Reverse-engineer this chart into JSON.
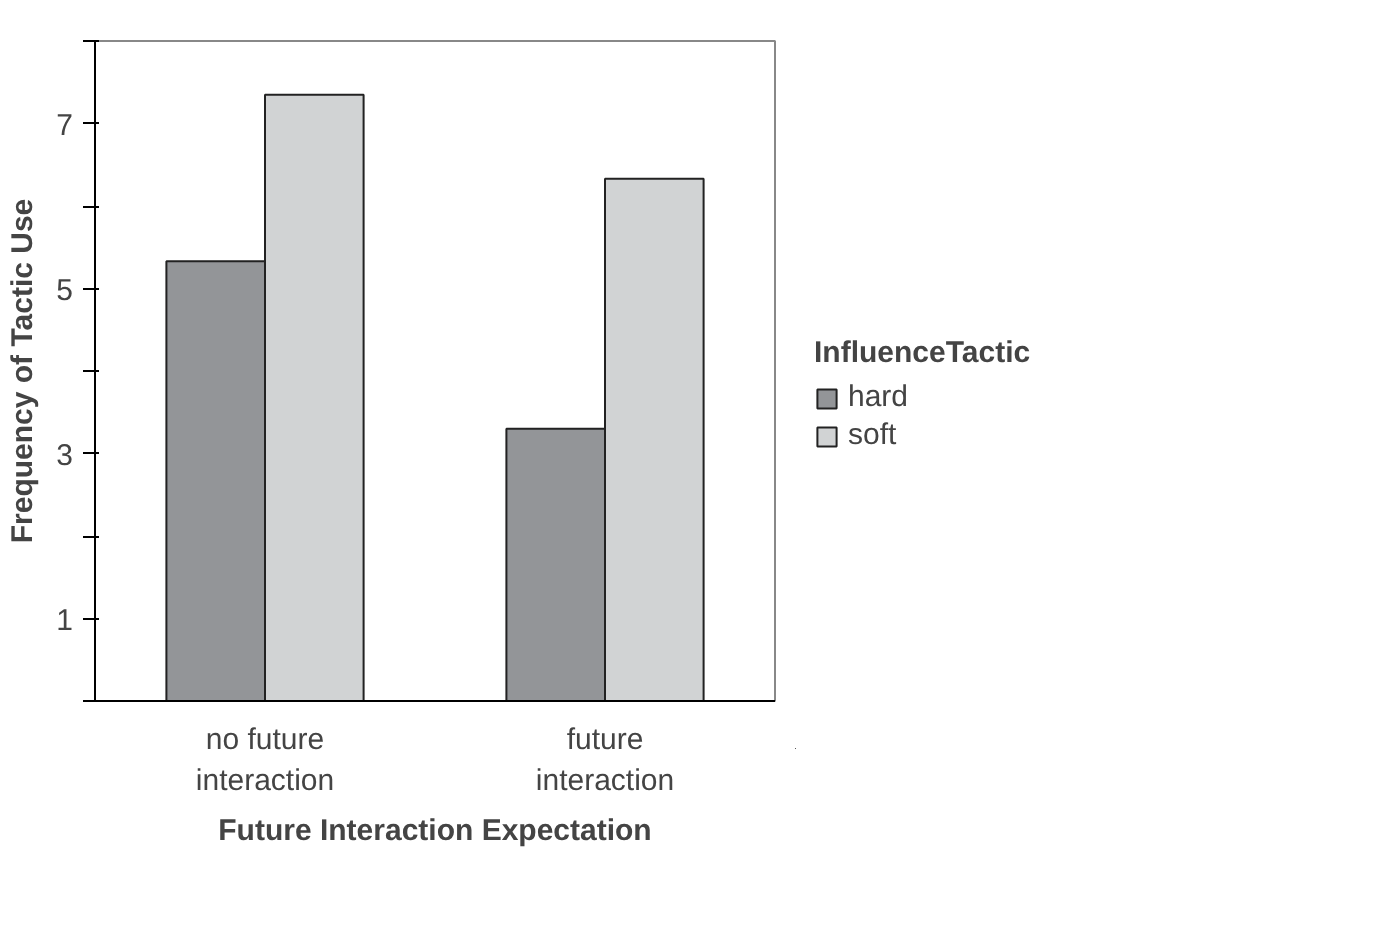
{
  "chart_data": {
    "type": "bar",
    "xlabel": "Future Interaction Expectation",
    "ylabel": "Frequency of Tactic Use",
    "legend_title": "InfluenceTactic",
    "categories": [
      "no future interaction",
      "future interaction"
    ],
    "series": [
      {
        "name": "hard",
        "color": "#939598",
        "values": [
          5.33,
          3.3
        ]
      },
      {
        "name": "soft",
        "color": "#d1d3d4",
        "values": [
          7.35,
          6.33
        ]
      }
    ],
    "ylim": [
      0,
      8
    ],
    "yticks": [
      {
        "value": 0,
        "label": null
      },
      1,
      {
        "value": 2,
        "label": null
      },
      3,
      {
        "value": 4,
        "label": null
      },
      5,
      {
        "value": 6,
        "label": null
      },
      7,
      {
        "value": 8,
        "label": null
      }
    ],
    "grid": false,
    "legend": "right"
  }
}
